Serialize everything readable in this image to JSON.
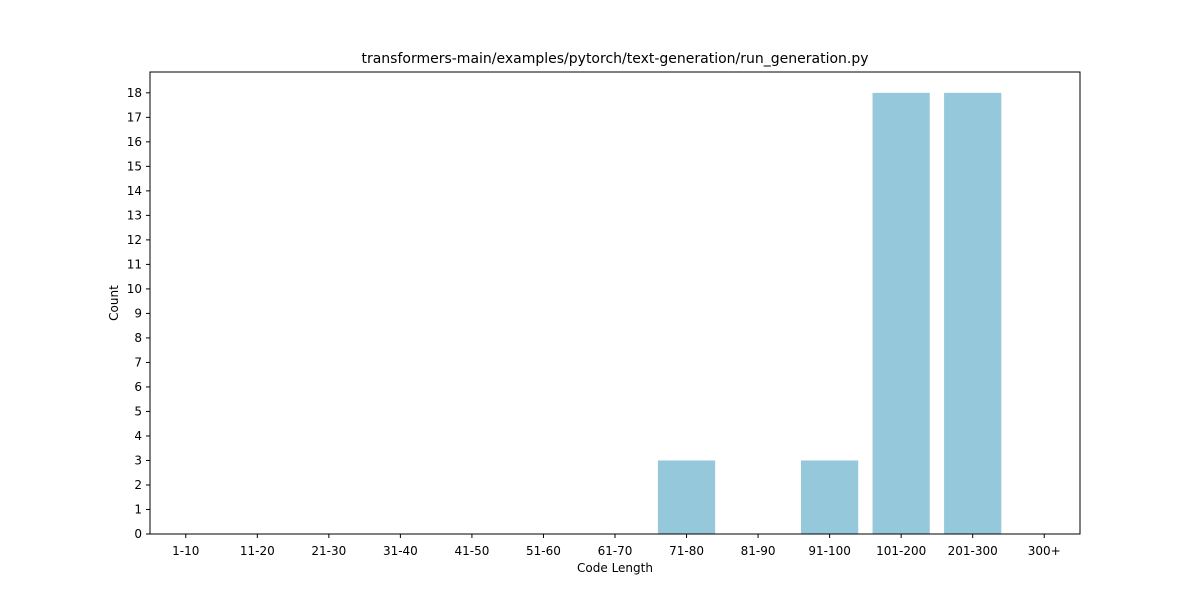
{
  "chart_data": {
    "type": "bar",
    "title": "transformers-main/examples/pytorch/text-generation/run_generation.py",
    "xlabel": "Code Length",
    "ylabel": "Count",
    "categories": [
      "1-10",
      "11-20",
      "21-30",
      "31-40",
      "41-50",
      "51-60",
      "61-70",
      "71-80",
      "81-90",
      "91-100",
      "101-200",
      "201-300",
      "300+"
    ],
    "values": [
      0,
      0,
      0,
      0,
      0,
      0,
      0,
      3,
      0,
      3,
      18,
      18,
      0
    ],
    "ylim": [
      0,
      18.85
    ],
    "yticks": [
      0,
      1,
      2,
      3,
      4,
      5,
      6,
      7,
      8,
      9,
      10,
      11,
      12,
      13,
      14,
      15,
      16,
      17,
      18
    ],
    "grid": false,
    "legend": "none",
    "bar_color": "#96c8dc"
  }
}
